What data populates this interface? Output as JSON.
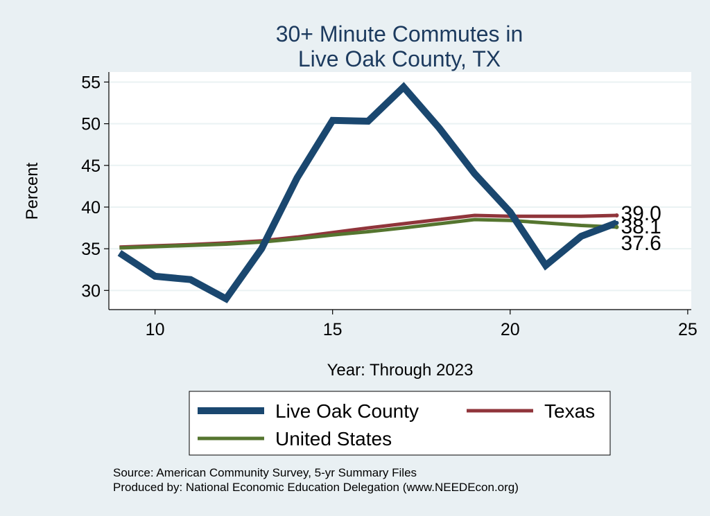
{
  "chart_data": {
    "type": "line",
    "title": [
      "30+ Minute Commutes in",
      "Live Oak County, TX"
    ],
    "xlabel": "Year: Through 2023",
    "ylabel": "Percent",
    "xlim": [
      8.7,
      25.1
    ],
    "ylim": [
      27.7,
      56.2
    ],
    "xticks": [
      10,
      15,
      20,
      25
    ],
    "yticks": [
      30,
      35,
      40,
      45,
      50,
      55
    ],
    "grid": true,
    "series": [
      {
        "name": "Live Oak County",
        "color": "#1a476f",
        "x": [
          9,
          10,
          11,
          12,
          13,
          14,
          15,
          16,
          17,
          18,
          19,
          20,
          21,
          22,
          23
        ],
        "values": [
          34.5,
          31.7,
          31.3,
          29.0,
          35.0,
          43.5,
          50.4,
          50.3,
          54.4,
          49.5,
          44.0,
          39.4,
          33.0,
          36.5,
          38.1
        ],
        "end_label": "38.1"
      },
      {
        "name": "Texas",
        "color": "#90353b",
        "x": [
          9,
          10,
          11,
          12,
          13,
          14,
          15,
          16,
          17,
          18,
          19,
          20,
          21,
          22,
          23
        ],
        "values": [
          35.2,
          35.35,
          35.5,
          35.7,
          35.95,
          36.4,
          36.95,
          37.5,
          38.0,
          38.5,
          39.0,
          38.9,
          38.9,
          38.9,
          39.0
        ],
        "end_label": "39.0"
      },
      {
        "name": "United States",
        "color": "#55752f",
        "x": [
          9,
          10,
          11,
          12,
          13,
          14,
          15,
          16,
          17,
          18,
          19,
          20,
          21,
          22,
          23
        ],
        "values": [
          35.1,
          35.25,
          35.4,
          35.55,
          35.8,
          36.2,
          36.65,
          37.05,
          37.5,
          38.0,
          38.5,
          38.4,
          38.1,
          37.8,
          37.6
        ],
        "end_label": "37.6"
      }
    ]
  },
  "footer": {
    "source": "Source: American Community Survey, 5-yr Summary Files",
    "produced": "Produced by: National Economic Education Delegation (www.NEEDEcon.org)"
  }
}
